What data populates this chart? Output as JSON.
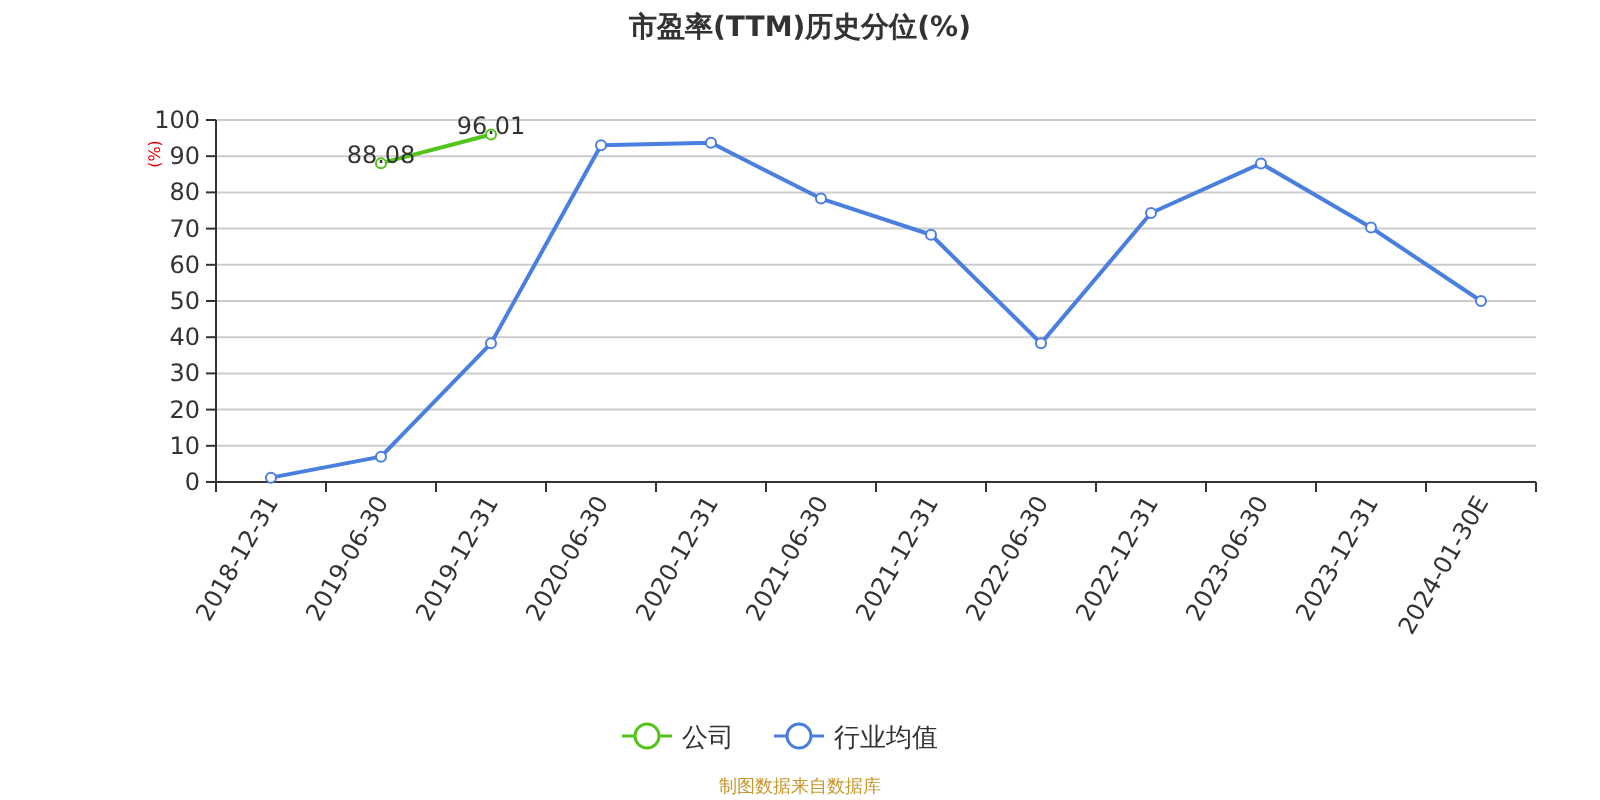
{
  "chart_data": {
    "type": "line",
    "title": "市盈率(TTM)历史分位(%)",
    "ylabel": "(%)",
    "categories": [
      "2018-12-31",
      "2019-06-30",
      "2019-12-31",
      "2020-06-30",
      "2020-12-31",
      "2021-06-30",
      "2021-12-31",
      "2022-06-30",
      "2022-12-31",
      "2023-06-30",
      "2023-12-31",
      "2024-01-30E"
    ],
    "series": [
      {
        "name": "公司",
        "color": "#52c41a",
        "values": [
          null,
          88.08,
          96.01,
          null,
          null,
          null,
          null,
          null,
          null,
          null,
          null,
          null
        ],
        "value_labels": [
          null,
          "88.08",
          "96.01",
          null,
          null,
          null,
          null,
          null,
          null,
          null,
          null,
          null
        ]
      },
      {
        "name": "行业均值",
        "color": "#4a7fe0",
        "values": [
          1.2,
          7,
          38.3,
          93,
          93.7,
          78.3,
          68.3,
          38.3,
          74.3,
          88,
          70.3,
          50
        ]
      }
    ],
    "ylim": [
      0,
      100
    ],
    "yticks": [
      0,
      10,
      20,
      30,
      40,
      50,
      60,
      70,
      80,
      90,
      100
    ],
    "grid": "y",
    "legend": "bottom",
    "marker": "circle",
    "annotations": [
      "制图数据来自数据库"
    ]
  }
}
